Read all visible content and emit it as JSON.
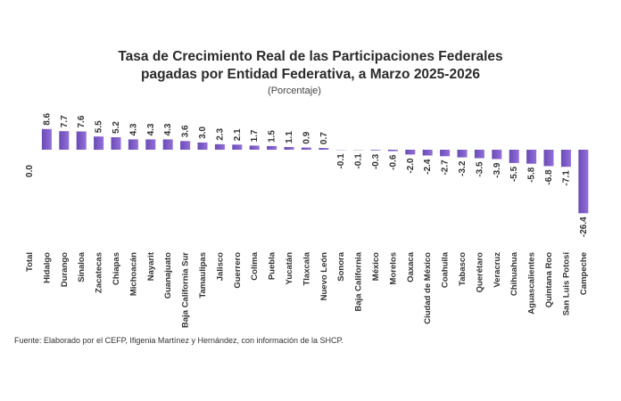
{
  "chart_data": {
    "type": "bar",
    "title_line1": "Tasa de Crecimiento Real de las Participaciones Federales",
    "title_line2": "pagadas por Entidad Federativa, a Marzo 2025-2026",
    "subtitle": "(Porcentaje)",
    "xlabel": "",
    "ylabel": "",
    "ylim": [
      -26.4,
      8.6
    ],
    "grid": false,
    "categories": [
      "Total",
      "Hidalgo",
      "Durango",
      "Sinaloa",
      "Zacatecas",
      "Chiapas",
      "Michoacán",
      "Nayarit",
      "Guanajuato",
      "Baja California Sur",
      "Tamaulipas",
      "Jalisco",
      "Guerrero",
      "Colima",
      "Puebla",
      "Yucatán",
      "Tlaxcala",
      "Nuevo León",
      "Sonora",
      "Baja California",
      "México",
      "Morelos",
      "Oaxaca",
      "Ciudad de México",
      "Coahuila",
      "Tabasco",
      "Querétaro",
      "Veracruz",
      "Chihuahua",
      "Aguascalientes",
      "Quintana Roo",
      "San Luis Potosí",
      "Campeche"
    ],
    "values": [
      0.0,
      8.6,
      7.7,
      7.6,
      5.5,
      5.2,
      4.3,
      4.3,
      4.3,
      3.6,
      3.0,
      2.3,
      2.1,
      1.7,
      1.5,
      1.1,
      0.9,
      0.7,
      -0.1,
      -0.1,
      -0.3,
      -0.6,
      -2.0,
      -2.4,
      -2.7,
      -3.2,
      -3.5,
      -3.9,
      -5.5,
      -5.8,
      -6.8,
      -7.1,
      -26.4
    ],
    "value_labels": [
      "0.0",
      "8.6",
      "7.7",
      "7.6",
      "5.5",
      "5.2",
      "4.3",
      "4.3",
      "4.3",
      "3.6",
      "3.0",
      "2.3",
      "2.1",
      "1.7",
      "1.5",
      "1.1",
      "0.9",
      "0.7",
      "-0.1",
      "-0.1",
      "-0.3",
      "-0.6",
      "-2.0",
      "-2.4",
      "-2.7",
      "-3.2",
      "-3.5",
      "-3.9",
      "-5.5",
      "-5.8",
      "-6.8",
      "-7.1",
      "-26.4"
    ],
    "bar_color": "#9370db",
    "bar_color_dark": "#6a4bb5"
  },
  "source": "Fuente: Elaborado por el CEFP, Ifigenia Martínez y Hernández, con información de la SHCP."
}
